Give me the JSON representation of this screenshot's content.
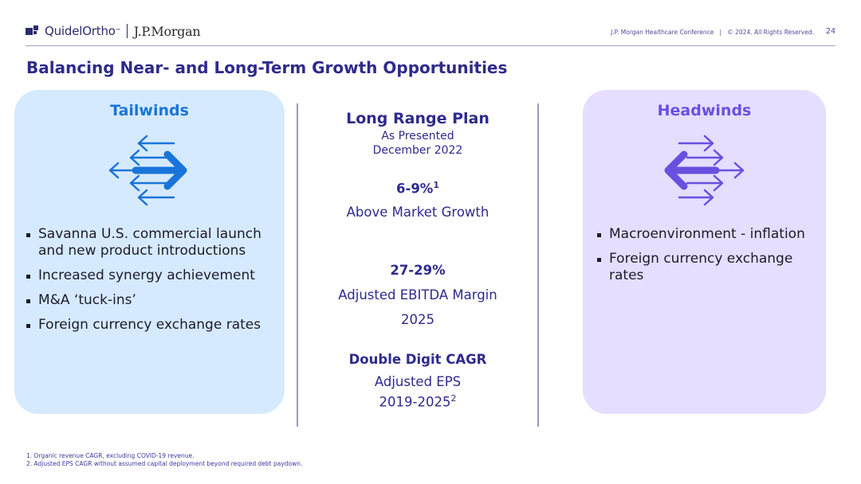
{
  "header": {
    "brand": "QuidelOrtho",
    "brand_tm": "™",
    "partner": "J.P.Morgan",
    "conference": "J.P. Morgan Healthcare Conference   |   © 2024. All Rights Reserved.",
    "page_number": "24"
  },
  "title": "Balancing Near- and Long-Term Growth Opportunities",
  "tailwinds": {
    "heading": "Tailwinds",
    "icon": "arrows-right-icon",
    "items": [
      "Savanna U.S. commercial launch and new product introductions",
      "Increased synergy achievement",
      "M&A ‘tuck-ins’",
      "Foreign currency exchange rates"
    ]
  },
  "long_range_plan": {
    "title": "Long Range Plan",
    "subtitle_1": "As Presented",
    "subtitle_2": "December 2022",
    "metric_1_value": "6-9%",
    "metric_1_sup": "1",
    "metric_1_label": "Above Market Growth",
    "metric_2_value": "27-29%",
    "metric_2_label": "Adjusted EBITDA Margin",
    "metric_2_year": "2025",
    "metric_3_value": "Double Digit CAGR",
    "metric_3_label": "Adjusted EPS",
    "metric_3_years": "2019-2025",
    "metric_3_sup": "2"
  },
  "headwinds": {
    "heading": "Headwinds",
    "icon": "arrows-left-icon",
    "items": [
      "Macroenvironment - inflation",
      "Foreign currency exchange rates"
    ]
  },
  "footnotes": [
    "1. Organic revenue CAGR, excluding COVID-19 revenue.",
    "2. Adjusted EPS CAGR without assumed capital deployment beyond required debt paydown."
  ],
  "colors": {
    "navy": "#2e2a8c",
    "tailwind_blue": "#1a74d9",
    "headwind_purple": "#6a4fe0",
    "tailwind_panel": "#d6eaff",
    "headwind_panel": "#e5deff"
  }
}
